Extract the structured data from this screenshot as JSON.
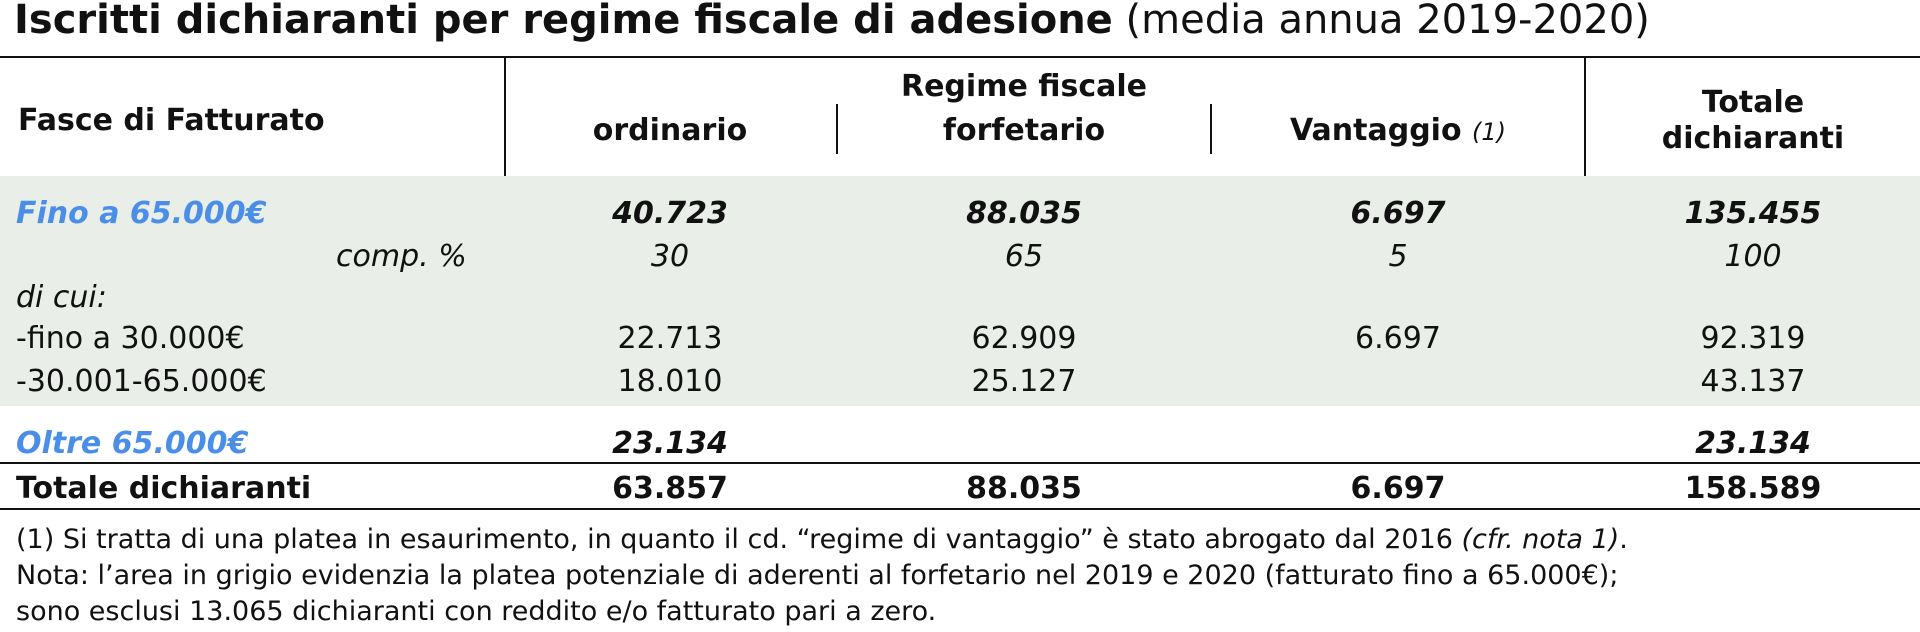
{
  "title": {
    "bold": "Iscritti dichiaranti per regime fiscale di adesione",
    "normal": "(media annua 2019-2020)"
  },
  "header": {
    "fasce": "Fasce di Fatturato",
    "regime_group": "Regime fiscale",
    "ordinario": "ordinario",
    "forfetario": "forfetario",
    "vantaggio": "Vantaggio",
    "vantaggio_note": "(1)",
    "totale_line1": "Totale",
    "totale_line2": "dichiaranti"
  },
  "rows": {
    "fino": {
      "label": "Fino a 65.000€",
      "values": [
        "40.723",
        "88.035",
        "6.697",
        "135.455"
      ]
    },
    "comp": {
      "label": "comp. %",
      "values": [
        "30",
        "65",
        "5",
        "100"
      ]
    },
    "di_cui": {
      "label": "di cui:"
    },
    "fino30": {
      "label": "-fino a 30.000€",
      "values": [
        "22.713",
        "62.909",
        "6.697",
        "92.319"
      ]
    },
    "range30_65": {
      "label": "-30.001-65.000€",
      "values": [
        "18.010",
        "25.127",
        "",
        "43.137"
      ]
    },
    "oltre": {
      "label": "Oltre 65.000€",
      "values": [
        "23.134",
        "",
        "",
        "23.134"
      ]
    },
    "totale": {
      "label": "Totale dichiaranti",
      "values": [
        "63.857",
        "88.035",
        "6.697",
        "158.589"
      ]
    }
  },
  "footnotes": {
    "note1_text": "(1) Si tratta di una platea in esaurimento, in quanto il cd. “regime di vantaggio” è stato abrogato dal 2016 ",
    "note1_ref": "(cfr. nota 1)",
    "note1_end": ".",
    "note2": "Nota: l’area in grigio evidenzia la platea potenziale di aderenti al forfetario nel 2019 e 2020 (fatturato fino a 65.000€);",
    "note3": "sono esclusi 13.065 dichiaranti con reddito e/o fatturato pari a zero."
  },
  "colors": {
    "accent_blue": "#4a8ee8",
    "gray_band": "#e9eee9"
  }
}
